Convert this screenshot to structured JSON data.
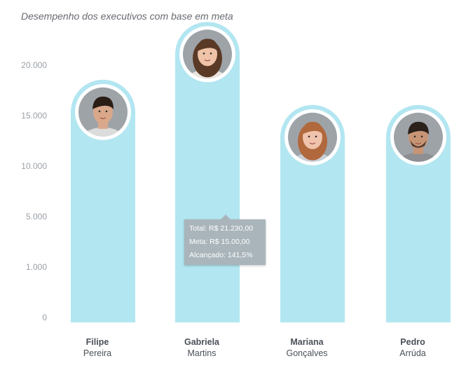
{
  "title": "Desempenho dos executivos com base em meta",
  "colors": {
    "bar": "#b2e6f1",
    "ring": "#ffffff",
    "axis_text": "#9aa0a6",
    "name_text": "#4a5058",
    "tooltip_bg": "#a9b5bb"
  },
  "chart_data": {
    "type": "bar",
    "title": "Desempenho dos executivos com base em meta",
    "categories": [
      "Filipe Pereira",
      "Gabriela Martins",
      "Mariana Gonçalves",
      "Pedro Arrúda"
    ],
    "values": [
      15500,
      21230,
      13000,
      13000
    ],
    "yticks": [
      {
        "value": 0,
        "label": "0"
      },
      {
        "value": 1000,
        "label": "1.000"
      },
      {
        "value": 5000,
        "label": "5.000"
      },
      {
        "value": 10000,
        "label": "10.000"
      },
      {
        "value": 15000,
        "label": "15.000"
      },
      {
        "value": 20000,
        "label": "20.000"
      }
    ],
    "grid": false,
    "legend": "none",
    "people": [
      {
        "first": "Filipe",
        "last": "Pereira",
        "avatar": "avatar-filipe",
        "hair": "#2a1d16",
        "skin": "#d9a88a",
        "shirt": "#dcdcdc"
      },
      {
        "first": "Gabriela",
        "last": "Martins",
        "avatar": "avatar-gabriela",
        "hair": "#5a3a26",
        "skin": "#efc3a8",
        "shirt": "#e9e4de"
      },
      {
        "first": "Mariana",
        "last": "Gonçalves",
        "avatar": "avatar-mariana",
        "hair": "#b0683c",
        "skin": "#f0c3ac",
        "shirt": "#c9d0d8"
      },
      {
        "first": "Pedro",
        "last": "Arrúda",
        "avatar": "avatar-pedro",
        "hair": "#2b211b",
        "skin": "#c79576",
        "shirt": "#8d8f93"
      }
    ]
  },
  "tooltip": {
    "total": "Total: R$ 21.230,00",
    "meta": "Meta: R$ 15.00,00",
    "alcancado": "Alcançado: 141,5%"
  }
}
